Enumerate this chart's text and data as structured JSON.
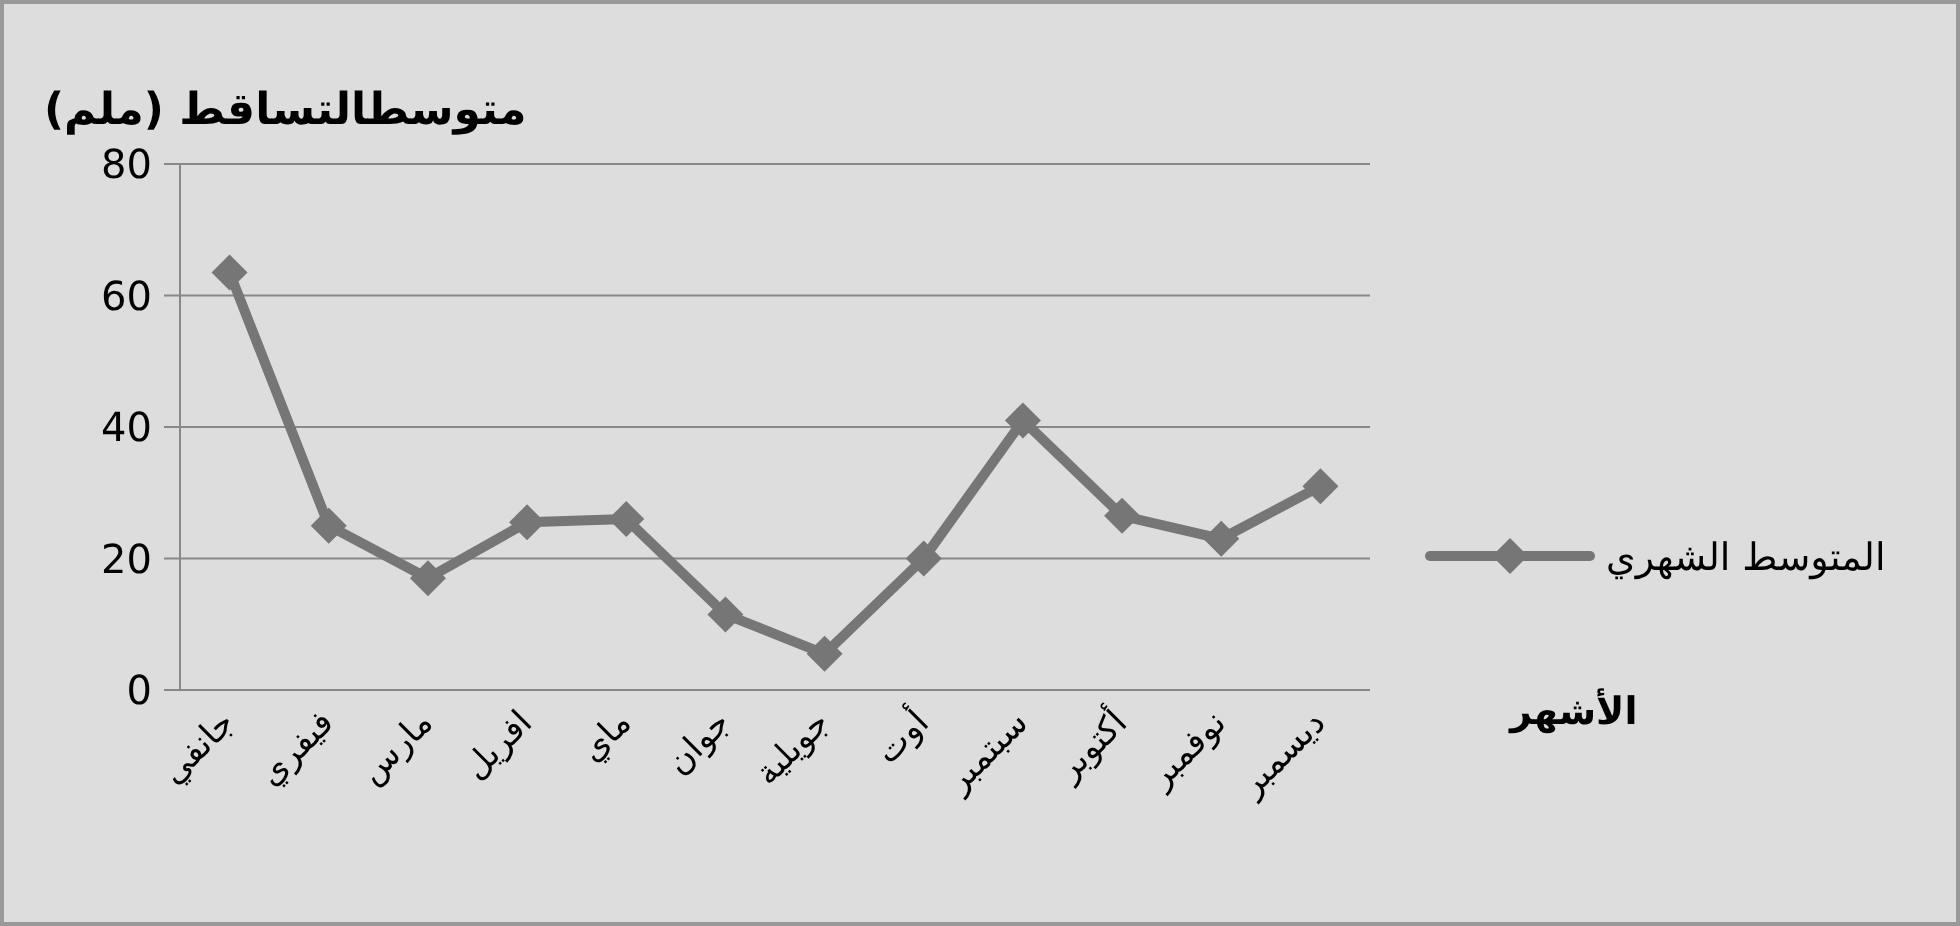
{
  "chart_data": {
    "type": "line",
    "title": "متوسطالتساقط (ملم)",
    "xlabel": "الأشهر",
    "categories": [
      "جانفي",
      "فيفري",
      "مارس",
      "افريل",
      "ماي",
      "جوان",
      "جويلية",
      "أوت",
      "سبتمبر",
      "أكتوبر",
      "نوفمبر",
      "ديسمبر"
    ],
    "series": [
      {
        "name": "المتوسط الشهري",
        "color": "#767676",
        "values": [
          63.5,
          25,
          17,
          25.5,
          26,
          11.5,
          5.5,
          20,
          41,
          26.5,
          23,
          31
        ]
      }
    ],
    "ylim": [
      0,
      80
    ],
    "yticks": [
      0,
      20,
      40,
      60,
      80
    ],
    "grid": "y",
    "legend": "right",
    "marker": "diamond",
    "line_style": "solid"
  }
}
